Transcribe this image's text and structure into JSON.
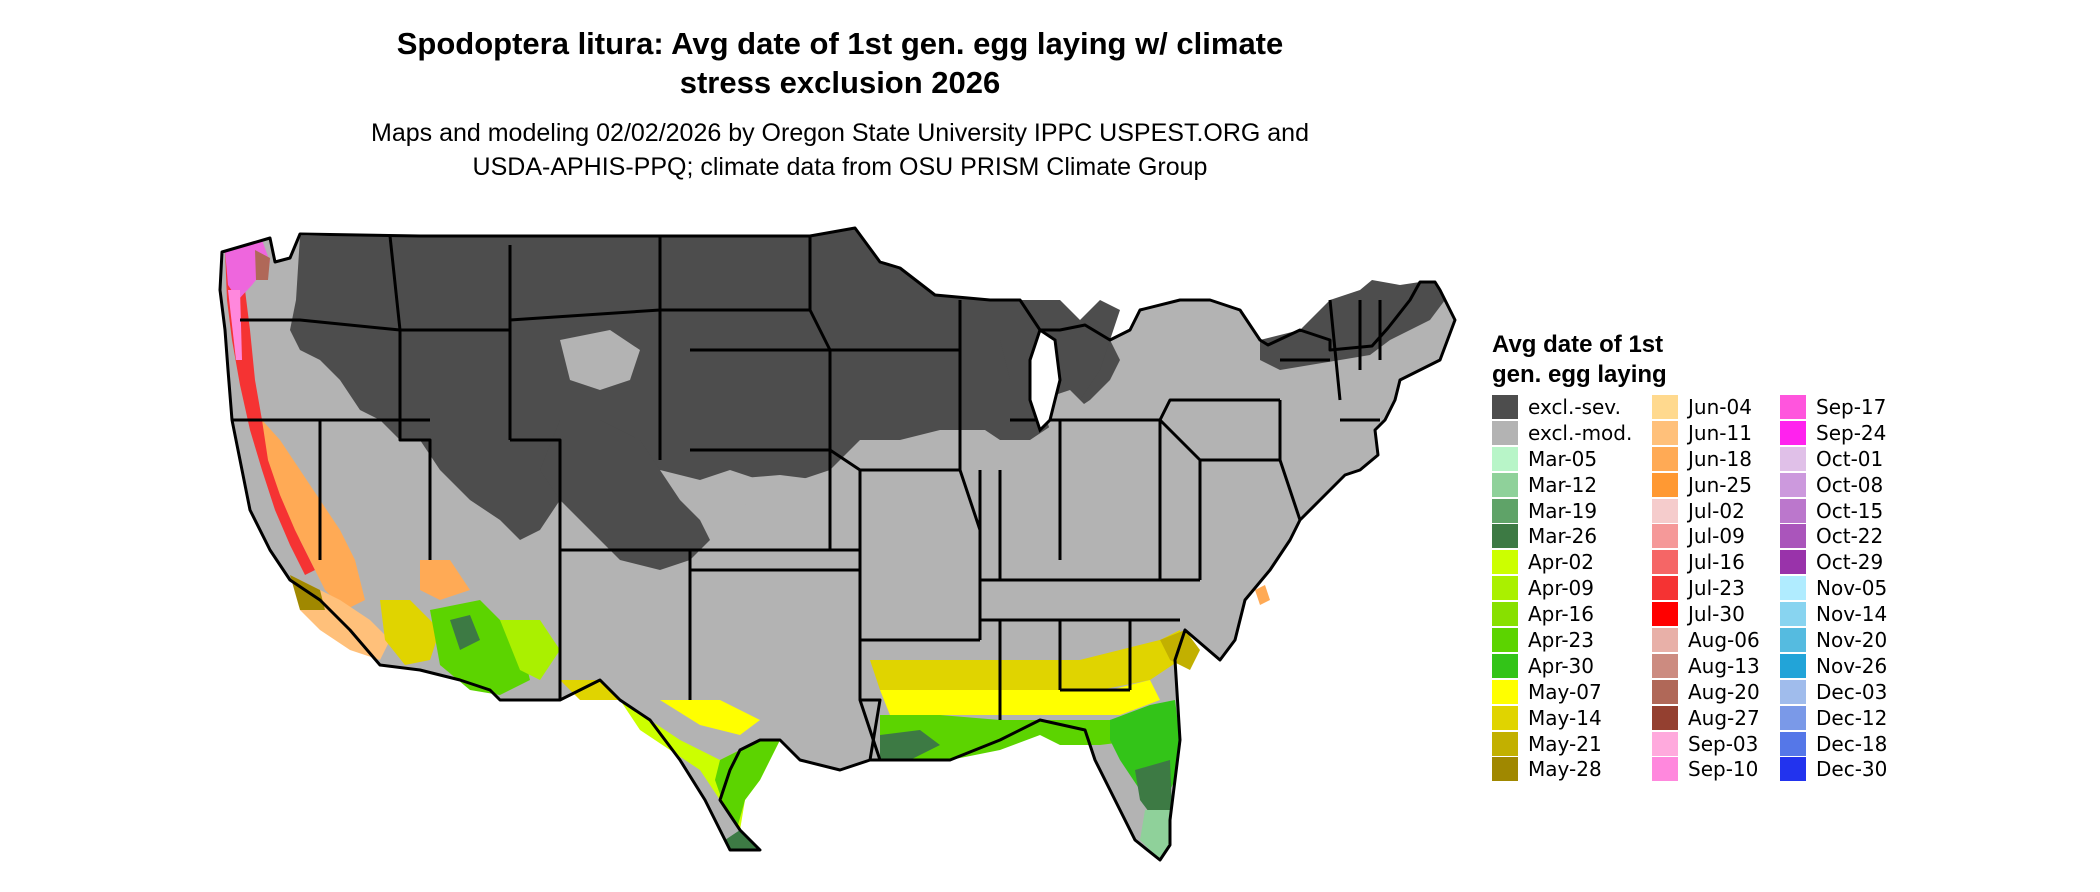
{
  "title_lines": [
    "Spodoptera litura: Avg date of 1st gen. egg laying w/ climate",
    "stress exclusion 2026"
  ],
  "subtitle_lines": [
    "Maps and modeling 02/02/2026 by Oregon State University IPPC USPEST.ORG and",
    "USDA-APHIS-PPQ; climate data from OSU PRISM Climate Group"
  ],
  "legend": {
    "title_lines": [
      "Avg date of 1st",
      "gen. egg laying"
    ],
    "columns": [
      [
        {
          "label": "excl.-sev.",
          "color": "#4d4d4d"
        },
        {
          "label": "excl.-mod.",
          "color": "#b3b3b3"
        },
        {
          "label": "Mar-05",
          "color": "#b8f5c8"
        },
        {
          "label": "Mar-12",
          "color": "#8fd19a"
        },
        {
          "label": "Mar-19",
          "color": "#5fa368"
        },
        {
          "label": "Mar-26",
          "color": "#3d7a44"
        },
        {
          "label": "Apr-02",
          "color": "#ccff00"
        },
        {
          "label": "Apr-09",
          "color": "#aaf000"
        },
        {
          "label": "Apr-16",
          "color": "#88e000"
        },
        {
          "label": "Apr-23",
          "color": "#5cd400"
        },
        {
          "label": "Apr-30",
          "color": "#33c418"
        },
        {
          "label": "May-07",
          "color": "#ffff00"
        },
        {
          "label": "May-14",
          "color": "#e0d400"
        },
        {
          "label": "May-21",
          "color": "#c2b000"
        },
        {
          "label": "May-28",
          "color": "#a08800"
        }
      ],
      [
        {
          "label": "Jun-04",
          "color": "#ffd98e"
        },
        {
          "label": "Jun-11",
          "color": "#ffc07a"
        },
        {
          "label": "Jun-18",
          "color": "#ffaa55"
        },
        {
          "label": "Jun-25",
          "color": "#ff9933"
        },
        {
          "label": "Jul-02",
          "color": "#f5cccc"
        },
        {
          "label": "Jul-09",
          "color": "#f59999"
        },
        {
          "label": "Jul-16",
          "color": "#f56666"
        },
        {
          "label": "Jul-23",
          "color": "#f53333"
        },
        {
          "label": "Jul-30",
          "color": "#ff0000"
        },
        {
          "label": "Aug-06",
          "color": "#e8b0a8"
        },
        {
          "label": "Aug-13",
          "color": "#cc8b80"
        },
        {
          "label": "Aug-20",
          "color": "#b06858"
        },
        {
          "label": "Aug-27",
          "color": "#944030"
        },
        {
          "label": "Sep-03",
          "color": "#ffaadd"
        },
        {
          "label": "Sep-10",
          "color": "#ff88dd"
        }
      ],
      [
        {
          "label": "Sep-17",
          "color": "#ff55dd"
        },
        {
          "label": "Sep-24",
          "color": "#ff22ee"
        },
        {
          "label": "Oct-01",
          "color": "#e0c0e8"
        },
        {
          "label": "Oct-08",
          "color": "#cc99dd"
        },
        {
          "label": "Oct-15",
          "color": "#bb77cc"
        },
        {
          "label": "Oct-22",
          "color": "#aa55bb"
        },
        {
          "label": "Oct-29",
          "color": "#9933aa"
        },
        {
          "label": "Nov-05",
          "color": "#b0ecff"
        },
        {
          "label": "Nov-14",
          "color": "#88d4f0"
        },
        {
          "label": "Nov-20",
          "color": "#55bbe0"
        },
        {
          "label": "Nov-26",
          "color": "#22a4d8"
        },
        {
          "label": "Dec-03",
          "color": "#a0bcec"
        },
        {
          "label": "Dec-12",
          "color": "#7a99e8"
        },
        {
          "label": "Dec-18",
          "color": "#5577e8"
        },
        {
          "label": "Dec-30",
          "color": "#2233ee"
        }
      ]
    ]
  },
  "map_colors": {
    "excluded_severe": "#4d4d4d",
    "excluded_moderate": "#b3b3b3",
    "border": "#000000"
  }
}
